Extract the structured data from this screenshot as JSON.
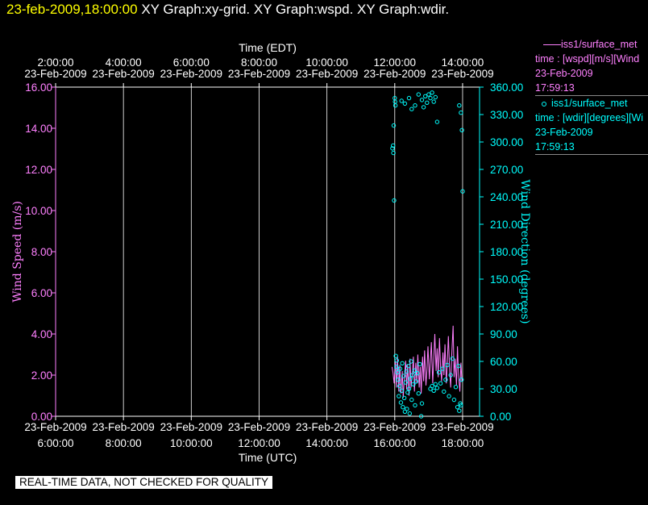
{
  "header": {
    "datetime": "23-feb-2009,18:00:00",
    "graphs": "XY Graph:xy-grid.  XY Graph:wspd.  XY Graph:wdir."
  },
  "legend": {
    "items": [
      {
        "lines": [
          "iss1/surface_met",
          "time : [wspd][m/s][Wind",
          "23-Feb-2009",
          "17:59:13"
        ],
        "color": "#ff80ff",
        "symbol": "line"
      },
      {
        "lines": [
          "iss1/surface_met",
          "time : [wdir][degrees][Wi",
          "23-Feb-2009",
          "17:59:13"
        ],
        "color": "#00ffff",
        "symbol": "circle"
      }
    ]
  },
  "quality_banner": "REAL-TIME DATA, NOT CHECKED FOR QUALITY",
  "colors": {
    "background": "#000000",
    "axes": "#ffffff",
    "wspd": "#ff80ff",
    "wdir": "#00ffff",
    "title": "#ffff00"
  },
  "chart_data": {
    "type": "line",
    "x_top_title": "Time (EDT)",
    "x_bottom_title": "Time (UTC)",
    "x_ticks_edt": [
      "2:00:00",
      "4:00:00",
      "6:00:00",
      "8:00:00",
      "10:00:00",
      "12:00:00",
      "14:00:00"
    ],
    "x_ticks_utc": [
      "6:00:00",
      "8:00:00",
      "10:00:00",
      "12:00:00",
      "14:00:00",
      "16:00:00",
      "18:00:00"
    ],
    "x_tick_date": "23-Feb-2009",
    "xlim_utc_hours": [
      6,
      18.5
    ],
    "y_left": {
      "label": "Wind Speed (m/s)",
      "lim": [
        0,
        16
      ],
      "ticks": [
        "0.00",
        "2.00",
        "4.00",
        "6.00",
        "8.00",
        "10.00",
        "12.00",
        "14.00",
        "16.00"
      ]
    },
    "y_right": {
      "label": "Wind Direction (degrees)",
      "lim": [
        0,
        360
      ],
      "ticks": [
        "0.00",
        "30.00",
        "60.00",
        "90.00",
        "120.00",
        "150.00",
        "180.00",
        "210.00",
        "240.00",
        "270.00",
        "300.00",
        "330.00",
        "360.00"
      ]
    },
    "series": [
      {
        "name": "iss1/surface_met time : [wspd][m/s]",
        "axis": "left",
        "style": "line",
        "x_hours_utc": [
          15.92,
          15.95,
          15.98,
          16.02,
          16.05,
          16.08,
          16.12,
          16.15,
          16.18,
          16.22,
          16.25,
          16.28,
          16.32,
          16.35,
          16.38,
          16.42,
          16.45,
          16.48,
          16.52,
          16.55,
          16.58,
          16.62,
          16.65,
          16.68,
          16.72,
          16.75,
          16.78,
          16.82,
          16.85,
          16.88,
          16.92,
          16.95,
          16.98,
          17.02,
          17.05,
          17.08,
          17.12,
          17.15,
          17.18,
          17.22,
          17.25,
          17.28,
          17.32,
          17.35,
          17.38,
          17.42,
          17.45,
          17.48,
          17.52,
          17.55,
          17.58,
          17.62,
          17.65,
          17.68,
          17.72,
          17.75,
          17.78,
          17.82,
          17.85,
          17.88,
          17.92,
          17.95,
          17.98
        ],
        "values": [
          2.4,
          2.1,
          1.6,
          2.7,
          1.4,
          2.9,
          1.2,
          2.5,
          1.1,
          2.2,
          0.9,
          1.8,
          2.7,
          1.3,
          2.5,
          1.0,
          2.8,
          1.4,
          2.1,
          2.9,
          1.2,
          2.6,
          1.6,
          3.0,
          1.4,
          2.4,
          1.1,
          2.9,
          1.7,
          3.2,
          1.5,
          2.3,
          3.4,
          1.8,
          2.7,
          3.6,
          1.6,
          2.8,
          4.0,
          2.2,
          3.3,
          1.9,
          3.8,
          2.4,
          1.7,
          3.1,
          2.0,
          3.5,
          1.6,
          2.6,
          3.9,
          2.1,
          1.4,
          3.0,
          4.4,
          1.9,
          2.8,
          1.5,
          3.4,
          2.0,
          1.2,
          2.6,
          1.7
        ]
      },
      {
        "name": "iss1/surface_met time : [wdir][degrees]",
        "axis": "right",
        "style": "markers",
        "points": [
          [
            15.93,
            293
          ],
          [
            15.95,
            296
          ],
          [
            15.96,
            288
          ],
          [
            15.97,
            318
          ],
          [
            15.98,
            236
          ],
          [
            16.0,
            348
          ],
          [
            16.01,
            344
          ],
          [
            16.02,
            340
          ],
          [
            16.03,
            66
          ],
          [
            16.05,
            54
          ],
          [
            16.06,
            61
          ],
          [
            16.08,
            48
          ],
          [
            16.1,
            40
          ],
          [
            16.12,
            22
          ],
          [
            16.14,
            33
          ],
          [
            16.16,
            52
          ],
          [
            16.18,
            15
          ],
          [
            16.2,
            28
          ],
          [
            16.22,
            58
          ],
          [
            16.24,
            10
          ],
          [
            16.26,
            44
          ],
          [
            16.28,
            20
          ],
          [
            16.3,
            5
          ],
          [
            16.32,
            37
          ],
          [
            16.34,
            49
          ],
          [
            16.36,
            8
          ],
          [
            16.38,
            26
          ],
          [
            16.4,
            55
          ],
          [
            16.42,
            30
          ],
          [
            16.44,
            3
          ],
          [
            16.46,
            41
          ],
          [
            16.48,
            60
          ],
          [
            16.5,
            18
          ],
          [
            16.52,
            45
          ],
          [
            16.55,
            35
          ],
          [
            16.58,
            50
          ],
          [
            16.6,
            12
          ],
          [
            16.63,
            38
          ],
          [
            16.66,
            47
          ],
          [
            16.7,
            25
          ],
          [
            16.74,
            57
          ],
          [
            16.78,
            0
          ],
          [
            16.8,
            14
          ],
          [
            16.2,
            345
          ],
          [
            16.3,
            342
          ],
          [
            16.42,
            348
          ],
          [
            16.5,
            336
          ],
          [
            16.6,
            340
          ],
          [
            16.7,
            352
          ],
          [
            16.8,
            346
          ],
          [
            16.85,
            338
          ],
          [
            16.9,
            350
          ],
          [
            16.95,
            343
          ],
          [
            17.0,
            352
          ],
          [
            17.05,
            348
          ],
          [
            17.1,
            354
          ],
          [
            17.15,
            344
          ],
          [
            17.2,
            349
          ],
          [
            17.25,
            322
          ],
          [
            17.05,
            30
          ],
          [
            17.1,
            33
          ],
          [
            17.15,
            28
          ],
          [
            17.2,
            35
          ],
          [
            17.25,
            31
          ],
          [
            17.3,
            48
          ],
          [
            17.35,
            36
          ],
          [
            17.4,
            52
          ],
          [
            17.45,
            27
          ],
          [
            17.5,
            40
          ],
          [
            17.55,
            56
          ],
          [
            17.6,
            22
          ],
          [
            17.65,
            45
          ],
          [
            17.7,
            63
          ],
          [
            17.75,
            18
          ],
          [
            17.8,
            32
          ],
          [
            17.85,
            10
          ],
          [
            17.88,
            55
          ],
          [
            17.9,
            6
          ],
          [
            17.93,
            14
          ],
          [
            17.95,
            12
          ],
          [
            17.97,
            40
          ],
          [
            17.9,
            340
          ],
          [
            17.95,
            332
          ],
          [
            17.98,
            313
          ],
          [
            18.0,
            246
          ]
        ]
      }
    ]
  }
}
